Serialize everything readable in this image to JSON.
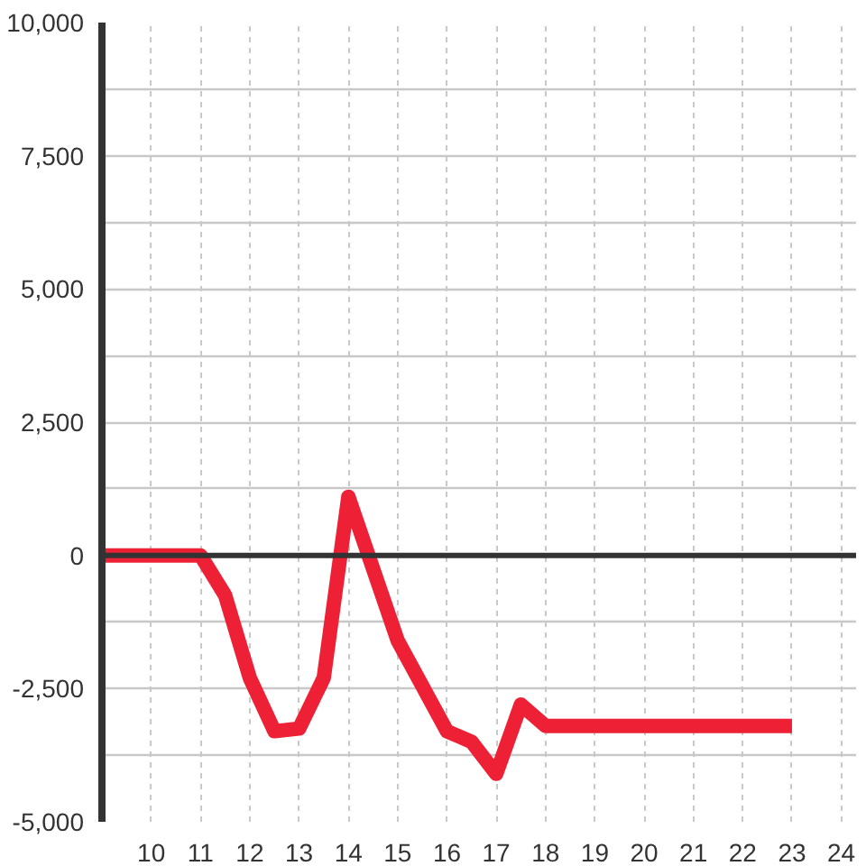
{
  "chart_data": {
    "type": "line",
    "x": [
      9,
      9.5,
      10,
      10.5,
      11,
      11.5,
      12,
      12.5,
      13,
      13.5,
      14,
      14.5,
      15,
      15.5,
      16,
      16.5,
      17,
      17.5,
      18,
      18.5,
      19,
      19.5,
      20,
      20.5,
      21,
      21.5,
      22,
      22.5,
      23
    ],
    "series": [
      {
        "color": "#ee2036",
        "values": [
          0,
          0,
          0,
          0,
          0,
          -750,
          -2300,
          -3300,
          -3250,
          -2300,
          1100,
          -250,
          -1600,
          -2450,
          -3300,
          -3500,
          -4100,
          -2800,
          -3200,
          -3200,
          -3200,
          -3200,
          -3200,
          -3200,
          -3200,
          -3200,
          -3200,
          -3200,
          -3200
        ]
      }
    ],
    "xlim": [
      9,
      24.3
    ],
    "xticks": [
      10,
      11,
      12,
      13,
      14,
      15,
      16,
      17,
      18,
      19,
      20,
      21,
      22,
      23,
      24
    ],
    "ylim": [
      -5000,
      10000
    ],
    "yticks": [
      {
        "value": -5000,
        "label": "-5,000"
      },
      {
        "value": -3750,
        "label": null
      },
      {
        "value": -2500,
        "label": "-2,500"
      },
      {
        "value": -1250,
        "label": null
      },
      0,
      {
        "value": 1250,
        "label": null
      },
      {
        "value": 2500,
        "label": "2,500"
      },
      {
        "value": 3750,
        "label": null
      },
      {
        "value": 5000,
        "label": "5,000"
      },
      {
        "value": 6250,
        "label": null
      },
      {
        "value": 7500,
        "label": "7,500"
      },
      {
        "value": 8750,
        "label": null
      },
      {
        "value": 10000,
        "label": "10,000"
      }
    ],
    "grid": true,
    "line_style": "solid",
    "ref_lines": [
      {
        "axis": "y",
        "value": 0,
        "color": "#333333"
      }
    ]
  }
}
